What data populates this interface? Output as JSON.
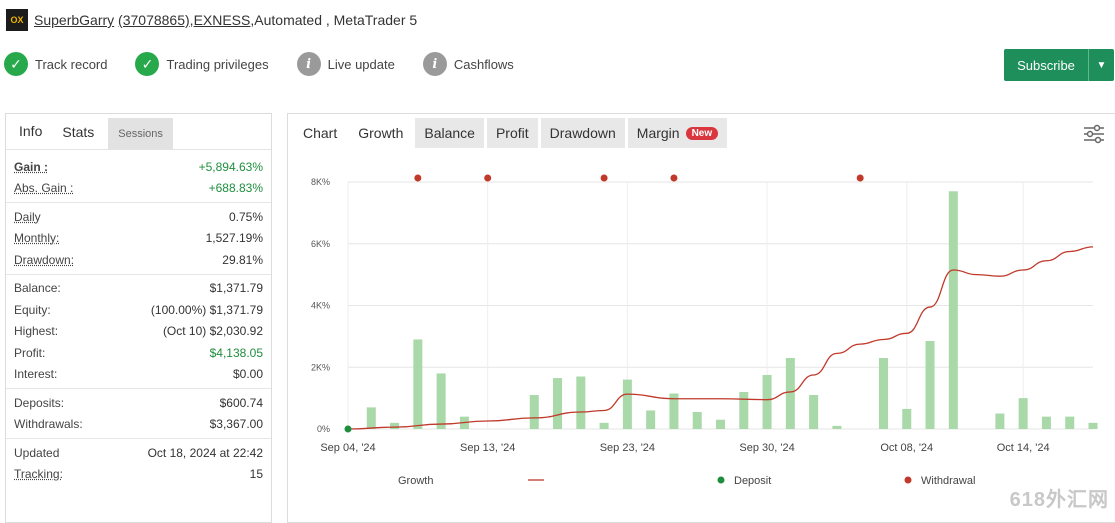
{
  "header": {
    "user": "SuperbGarry",
    "account": "(37078865)",
    "broker": "EXNESS",
    "sep1": ", ",
    "sep2": " , ",
    "desc": "Automated , MetaTrader 5"
  },
  "badges": [
    {
      "label": "Track record",
      "icon": "check-icon",
      "state": "ok"
    },
    {
      "label": "Trading privileges",
      "icon": "check-icon",
      "state": "ok"
    },
    {
      "label": "Live update",
      "icon": "info-icon",
      "state": "gray"
    },
    {
      "label": "Cashflows",
      "icon": "info-icon",
      "state": "gray"
    }
  ],
  "subscribe": {
    "label": "Subscribe"
  },
  "left_tabs": [
    "Info",
    "Stats",
    "Sessions"
  ],
  "stats": {
    "gain": {
      "k": "Gain :",
      "v": "+5,894.63%"
    },
    "abs_gain": {
      "k": "Abs. Gain :",
      "v": "+688.83%"
    },
    "daily": {
      "k": "Daily",
      "v": "0.75%"
    },
    "monthly": {
      "k": "Monthly:",
      "v": "1,527.19%"
    },
    "drawdown": {
      "k": "Drawdown:",
      "v": "29.81%"
    },
    "balance": {
      "k": "Balance:",
      "v": "$1,371.79"
    },
    "equity": {
      "k": "Equity:",
      "v": "(100.00%) $1,371.79"
    },
    "highest": {
      "k": "Highest:",
      "v": "(Oct 10) $2,030.92"
    },
    "profit": {
      "k": "Profit:",
      "v": "$4,138.05"
    },
    "interest": {
      "k": "Interest:",
      "v": "$0.00"
    },
    "deposits": {
      "k": "Deposits:",
      "v": "$600.74"
    },
    "withdrawals": {
      "k": "Withdrawals:",
      "v": "$3,367.00"
    },
    "updated": {
      "k": "Updated",
      "v": "Oct 18, 2024 at 22:42"
    },
    "tracking": {
      "k": "Tracking:",
      "v": "15"
    }
  },
  "chart_tabs": {
    "chart": "Chart",
    "growth": "Growth",
    "balance": "Balance",
    "profit": "Profit",
    "drawdown": "Drawdown",
    "margin": "Margin",
    "new_badge": "New"
  },
  "colors": {
    "accent": "#1e8e5a",
    "line": "#c0392b",
    "bar": "#a9d8a9",
    "deposit": "#1e8e3e",
    "withdrawal": "#c0392b"
  },
  "chart_data": {
    "type": "bar",
    "ytick_labels": [
      "0%",
      "2K%",
      "4K%",
      "6K%",
      "8K%"
    ],
    "yticks": [
      0,
      2000,
      4000,
      6000,
      8000
    ],
    "ylim": [
      0,
      8000
    ],
    "xtick_labels": [
      "Sep 04, '24",
      "Sep 13, '24",
      "Sep 23, '24",
      "Sep 30, '24",
      "Oct 08, '24",
      "Oct 14, '24"
    ],
    "xticks": [
      0,
      6,
      12,
      18,
      24,
      29
    ],
    "xlim": [
      0,
      32
    ],
    "series": [
      {
        "name": "Growth",
        "type": "bar",
        "x": [
          1,
          2,
          3,
          4,
          5,
          8,
          9,
          10,
          11,
          12,
          13,
          14,
          15,
          16,
          17,
          18,
          19,
          20,
          21,
          23,
          24,
          25,
          26,
          28,
          29,
          30,
          31,
          32
        ],
        "values": [
          700,
          200,
          2900,
          1800,
          400,
          1100,
          1650,
          1700,
          200,
          1600,
          600,
          1150,
          550,
          300,
          1200,
          1750,
          2300,
          1100,
          100,
          2300,
          650,
          2850,
          7700,
          500,
          1000,
          400,
          400,
          200
        ]
      },
      {
        "name": "",
        "type": "line",
        "x": [
          0,
          2,
          4,
          6,
          8,
          10,
          11,
          12,
          14,
          16,
          18,
          19,
          20,
          21,
          22,
          23,
          24,
          25,
          26,
          27,
          28,
          29,
          30,
          31,
          32
        ],
        "values": [
          0,
          60,
          160,
          260,
          360,
          550,
          600,
          1130,
          980,
          980,
          950,
          1200,
          1750,
          2450,
          2750,
          2900,
          3100,
          3950,
          5150,
          5000,
          4950,
          5150,
          5450,
          5750,
          5900
        ]
      }
    ],
    "deposits_x": [
      0
    ],
    "withdrawals_x": [
      3,
      6,
      11,
      14,
      22
    ],
    "legend": [
      "Growth",
      "Deposit",
      "Withdrawal"
    ],
    "legend_position": "bottom",
    "grid": true
  },
  "watermark": "618外汇网"
}
